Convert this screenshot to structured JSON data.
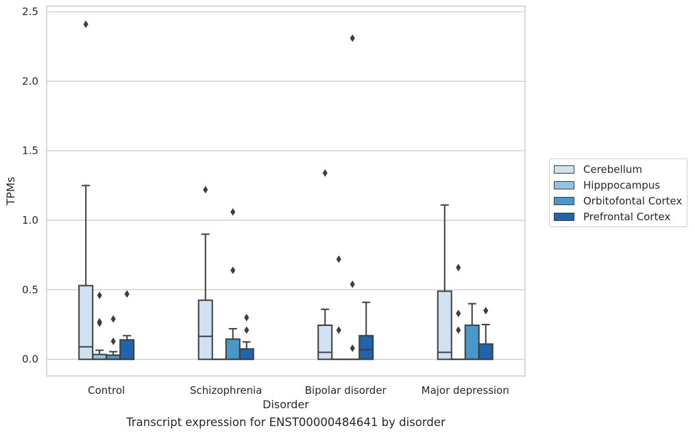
{
  "chart_data": {
    "type": "box",
    "title": "",
    "caption": "Transcript expression for ENST00000484641 by disorder",
    "xlabel": "Disorder",
    "ylabel": "TPMs",
    "ylim": [
      -0.12,
      2.54
    ],
    "yticks": [
      "0.0",
      "0.5",
      "1.0",
      "1.5",
      "2.0",
      "2.5"
    ],
    "ytick_values": [
      0,
      0.5,
      1.0,
      1.5,
      2.0,
      2.5
    ],
    "grid": "horizontal",
    "legend_position": "right",
    "categories": [
      "Control",
      "Schizophrenia",
      "Bipolar disorder",
      "Major depression"
    ],
    "series": [
      {
        "name": "Cerebellum",
        "color": "#d0e1f2",
        "boxes": [
          {
            "q1": 0,
            "median": 0.09,
            "q3": 0.53,
            "whisker_low": 0,
            "whisker_high": 1.25,
            "outliers": [
              2.41
            ]
          },
          {
            "q1": 0,
            "median": 0.165,
            "q3": 0.425,
            "whisker_low": 0,
            "whisker_high": 0.9,
            "outliers": [
              1.22
            ]
          },
          {
            "q1": 0,
            "median": 0.05,
            "q3": 0.245,
            "whisker_low": 0,
            "whisker_high": 0.36,
            "outliers": [
              1.34
            ]
          },
          {
            "q1": 0,
            "median": 0.05,
            "q3": 0.49,
            "whisker_low": 0,
            "whisker_high": 1.11,
            "outliers": []
          }
        ]
      },
      {
        "name": "Hipppocampus",
        "color": "#94c4df",
        "boxes": [
          {
            "q1": 0,
            "median": 0.0,
            "q3": 0.035,
            "whisker_low": 0,
            "whisker_high": 0.065,
            "outliers": [
              0.26,
              0.27,
              0.46
            ]
          },
          {
            "q1": 0,
            "median": 0,
            "q3": 0,
            "whisker_low": 0,
            "whisker_high": 0,
            "outliers": []
          },
          {
            "q1": 0,
            "median": 0,
            "q3": 0,
            "whisker_low": 0,
            "whisker_high": 0,
            "outliers": [
              0.21,
              0.72
            ]
          },
          {
            "q1": 0,
            "median": 0,
            "q3": 0,
            "whisker_low": 0,
            "whisker_high": 0,
            "outliers": [
              0.21,
              0.33,
              0.66
            ]
          }
        ]
      },
      {
        "name": "Orbitofontal Cortex",
        "color": "#4a98c9",
        "boxes": [
          {
            "q1": 0,
            "median": 0.0,
            "q3": 0.03,
            "whisker_low": 0,
            "whisker_high": 0.055,
            "outliers": [
              0.13,
              0.29
            ]
          },
          {
            "q1": 0,
            "median": 0.0,
            "q3": 0.145,
            "whisker_low": 0,
            "whisker_high": 0.22,
            "outliers": [
              0.64,
              1.06
            ]
          },
          {
            "q1": 0,
            "median": 0,
            "q3": 0,
            "whisker_low": 0,
            "whisker_high": 0,
            "outliers": [
              0.08,
              0.54,
              2.31
            ]
          },
          {
            "q1": 0,
            "median": 0.0,
            "q3": 0.245,
            "whisker_low": 0,
            "whisker_high": 0.4,
            "outliers": []
          }
        ]
      },
      {
        "name": "Prefrontal Cortex",
        "color": "#2164ab",
        "boxes": [
          {
            "q1": 0,
            "median": 0.0,
            "q3": 0.14,
            "whisker_low": 0,
            "whisker_high": 0.17,
            "outliers": [
              0.47
            ]
          },
          {
            "q1": 0,
            "median": 0.0,
            "q3": 0.075,
            "whisker_low": 0,
            "whisker_high": 0.125,
            "outliers": [
              0.21,
              0.3
            ]
          },
          {
            "q1": 0,
            "median": 0.07,
            "q3": 0.17,
            "whisker_low": 0,
            "whisker_high": 0.41,
            "outliers": []
          },
          {
            "q1": 0,
            "median": 0.0,
            "q3": 0.11,
            "whisker_low": 0,
            "whisker_high": 0.25,
            "outliers": [
              0.35
            ]
          }
        ]
      }
    ]
  }
}
